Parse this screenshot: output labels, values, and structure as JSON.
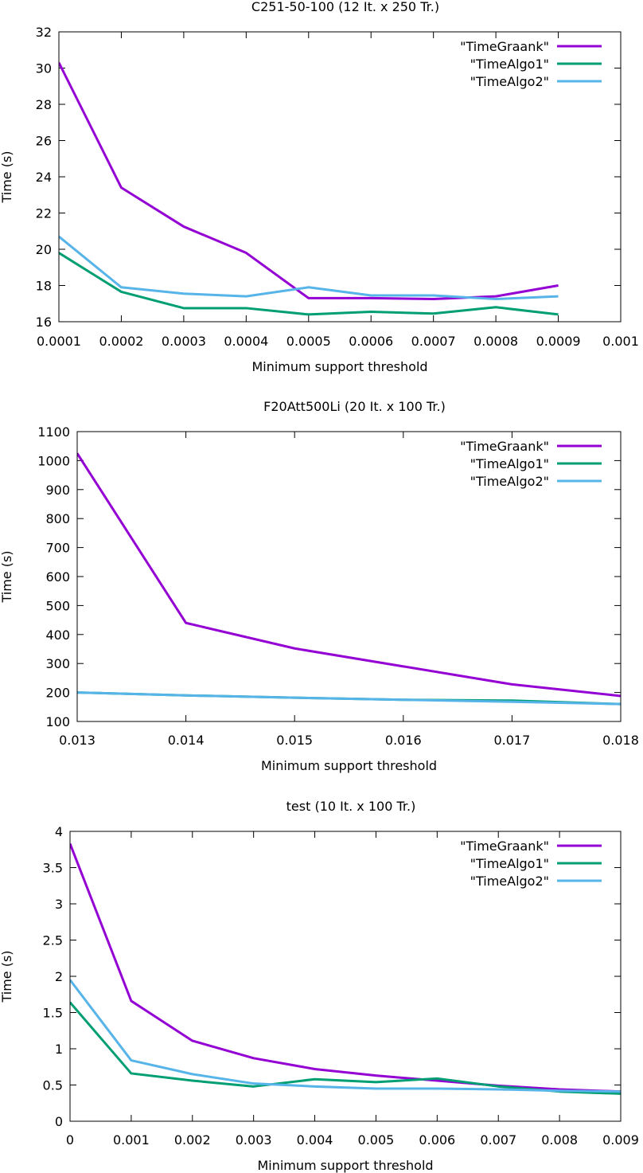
{
  "chart_data": [
    {
      "type": "line",
      "title": "C251-50-100 (12 It. x  250 Tr.)",
      "xlabel": "Minimum support threshold",
      "ylabel": "Time (s)",
      "xlim": [
        0.0001,
        0.001
      ],
      "ylim": [
        16,
        32
      ],
      "xticks": [
        0.0001,
        0.0002,
        0.0003,
        0.0004,
        0.0005,
        0.0006,
        0.0007,
        0.0008,
        0.0009,
        0.001
      ],
      "xtick_labels": [
        "0.0001",
        "0.0002",
        "0.0003",
        "0.0004",
        "0.0005",
        "0.0006",
        "0.0007",
        "0.0008",
        "0.0009",
        "0.001"
      ],
      "yticks": [
        16,
        18,
        20,
        22,
        24,
        26,
        28,
        30,
        32
      ],
      "ytick_labels": [
        "16",
        "18",
        "20",
        "22",
        "24",
        "26",
        "28",
        "30",
        "32"
      ],
      "grid": false,
      "legend_position": "top-right",
      "x": [
        0.0001,
        0.0002,
        0.0003,
        0.0004,
        0.0005,
        0.0006,
        0.0007,
        0.0008,
        0.0009
      ],
      "series": [
        {
          "name": "\"TimeGraank\"",
          "color": "#9400d3",
          "values": [
            30.3,
            23.4,
            21.25,
            19.8,
            17.3,
            17.3,
            17.25,
            17.4,
            18.0
          ]
        },
        {
          "name": "\"TimeAlgo1\"",
          "color": "#009e73",
          "values": [
            19.8,
            17.65,
            16.75,
            16.75,
            16.4,
            16.55,
            16.45,
            16.8,
            16.4
          ]
        },
        {
          "name": "\"TimeAlgo2\"",
          "color": "#56b4e9",
          "values": [
            20.7,
            17.9,
            17.55,
            17.4,
            17.9,
            17.45,
            17.45,
            17.25,
            17.4
          ]
        }
      ]
    },
    {
      "type": "line",
      "title": "F20Att500Li (20 It. x  100 Tr.)",
      "xlabel": "Minimum support threshold",
      "ylabel": "Time (s)",
      "xlim": [
        0.013,
        0.018
      ],
      "ylim": [
        100,
        1100
      ],
      "xticks": [
        0.013,
        0.014,
        0.015,
        0.016,
        0.017,
        0.018
      ],
      "xtick_labels": [
        "0.013",
        "0.014",
        "0.015",
        "0.016",
        "0.017",
        "0.018"
      ],
      "yticks": [
        100,
        200,
        300,
        400,
        500,
        600,
        700,
        800,
        900,
        1000,
        1100
      ],
      "ytick_labels": [
        "100",
        "200",
        "300",
        "400",
        "500",
        "600",
        "700",
        "800",
        "900",
        "1000",
        "1100"
      ],
      "grid": false,
      "legend_position": "top-right",
      "x": [
        0.013,
        0.014,
        0.015,
        0.016,
        0.017,
        0.018
      ],
      "series": [
        {
          "name": "\"TimeGraank\"",
          "color": "#9400d3",
          "values": [
            1025,
            440,
            352,
            290,
            228,
            188
          ]
        },
        {
          "name": "\"TimeAlgo1\"",
          "color": "#009e73",
          "values": [
            200,
            190,
            182,
            175,
            172,
            160
          ]
        },
        {
          "name": "\"TimeAlgo2\"",
          "color": "#56b4e9",
          "values": [
            200,
            190,
            182,
            175,
            168,
            160
          ]
        }
      ]
    },
    {
      "type": "line",
      "title": "test (10 It. x  100 Tr.)",
      "xlabel": "Minimum support threshold",
      "ylabel": "Time (s)",
      "xlim": [
        0,
        0.009
      ],
      "ylim": [
        0,
        4
      ],
      "xticks": [
        0,
        0.001,
        0.002,
        0.003,
        0.004,
        0.005,
        0.006,
        0.007,
        0.008,
        0.009
      ],
      "xtick_labels": [
        "0",
        "0.001",
        "0.002",
        "0.003",
        "0.004",
        "0.005",
        "0.006",
        "0.007",
        "0.008",
        "0.009"
      ],
      "yticks": [
        0,
        0.5,
        1,
        1.5,
        2,
        2.5,
        3,
        3.5,
        4
      ],
      "ytick_labels": [
        "0",
        "0.5",
        "1",
        "1.5",
        "2",
        "2.5",
        "3",
        "3.5",
        "4"
      ],
      "grid": false,
      "legend_position": "top-right",
      "x": [
        0,
        0.001,
        0.002,
        0.003,
        0.004,
        0.005,
        0.006,
        0.007,
        0.008,
        0.009
      ],
      "series": [
        {
          "name": "\"TimeGraank\"",
          "color": "#9400d3",
          "values": [
            3.83,
            1.66,
            1.11,
            0.87,
            0.72,
            0.63,
            0.56,
            0.49,
            0.44,
            0.41
          ]
        },
        {
          "name": "\"TimeAlgo1\"",
          "color": "#009e73",
          "values": [
            1.64,
            0.66,
            0.56,
            0.48,
            0.58,
            0.54,
            0.59,
            0.48,
            0.41,
            0.38
          ]
        },
        {
          "name": "\"TimeAlgo2\"",
          "color": "#56b4e9",
          "values": [
            1.95,
            0.84,
            0.65,
            0.52,
            0.48,
            0.45,
            0.45,
            0.44,
            0.42,
            0.41
          ]
        }
      ]
    }
  ]
}
